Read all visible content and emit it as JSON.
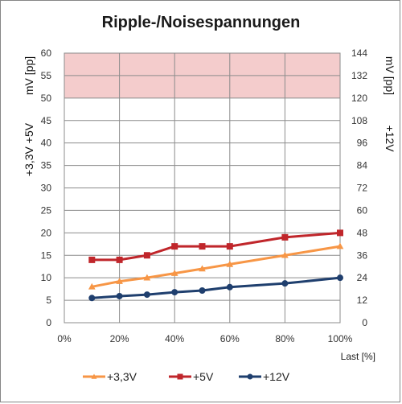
{
  "chart_data": {
    "type": "line",
    "title": "Ripple-/Noisespannungen",
    "xlabel": "Last [%]",
    "ylabel_left_top": "mV [pp]",
    "ylabel_left_bottom": "+3,3V +5V",
    "ylabel_right_top": "mV [pp]",
    "ylabel_right_bottom": "+12V",
    "x_ticks": [
      "0%",
      "20%",
      "40%",
      "60%",
      "80%",
      "100%"
    ],
    "x_range": [
      0,
      100
    ],
    "ylim_left": [
      0,
      60
    ],
    "ylim_right": [
      0,
      144
    ],
    "y_ticks_left": [
      "0",
      "5",
      "10",
      "15",
      "20",
      "25",
      "30",
      "35",
      "40",
      "45",
      "50",
      "55",
      "60"
    ],
    "y_ticks_right": [
      "0",
      "12",
      "24",
      "36",
      "48",
      "60",
      "72",
      "84",
      "96",
      "108",
      "120",
      "132",
      "144"
    ],
    "grid": true,
    "limit_band": {
      "from": 50,
      "to": 60,
      "color": "#f4cccc",
      "axis": "left"
    },
    "legend_position": "bottom",
    "series": [
      {
        "name": "+3,3V",
        "axis": "left",
        "color": "#f79646",
        "marker": "triangle",
        "x": [
          10,
          20,
          30,
          40,
          50,
          60,
          80,
          100
        ],
        "values": [
          8,
          9.2,
          10,
          11,
          12,
          13,
          15,
          17
        ]
      },
      {
        "name": "+5V",
        "axis": "left",
        "color": "#c0262b",
        "marker": "square",
        "x": [
          10,
          20,
          30,
          40,
          50,
          60,
          80,
          100
        ],
        "values": [
          14,
          14,
          15,
          17,
          17,
          17,
          19,
          20
        ]
      },
      {
        "name": "+12V",
        "axis": "right",
        "color": "#1f3f6e",
        "marker": "circle",
        "x": [
          10,
          20,
          30,
          40,
          50,
          60,
          80,
          100
        ],
        "values": [
          13.2,
          14.2,
          15,
          16.3,
          17.2,
          19,
          21,
          24
        ]
      }
    ]
  }
}
